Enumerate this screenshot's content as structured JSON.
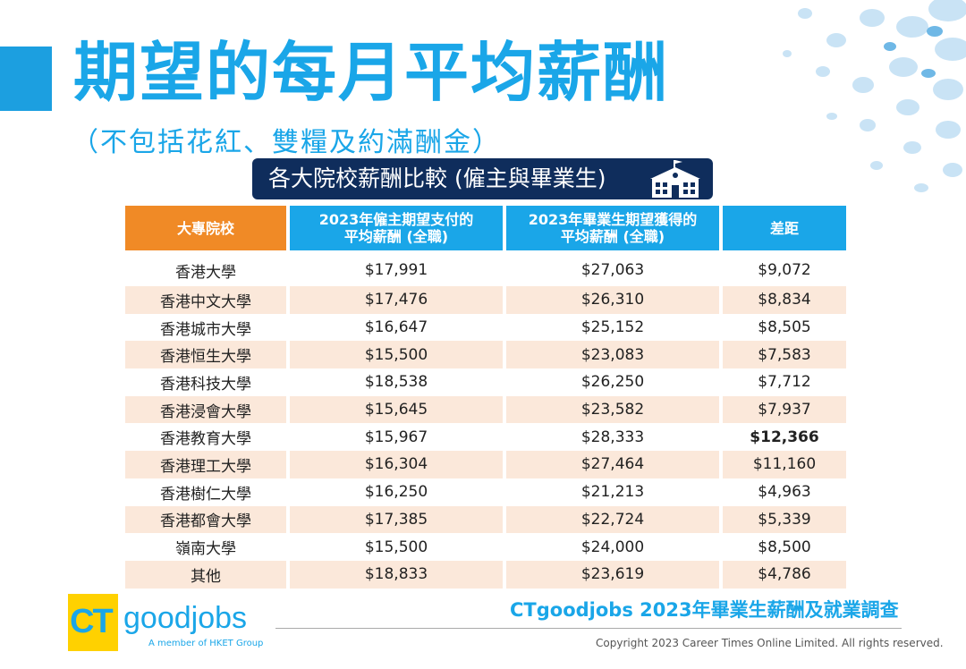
{
  "header": {
    "title": "期望的每月平均薪酬",
    "subtitle": "（不包括花紅、雙糧及約滿酬金）",
    "banner": "各大院校薪酬比較 (僱主與畢業生)"
  },
  "colors": {
    "accent_blue": "#1aa6e8",
    "accent_orange": "#f08a26",
    "banner_navy": "#0f2d5c",
    "row_alt": "#fbe8da",
    "highlight": "#e8601c"
  },
  "chart_data": {
    "type": "table",
    "title": "各大院校薪酬比較 (僱主與畢業生)",
    "columns": [
      "大專院校",
      "2023年僱主期望支付的平均薪酬 (全職)",
      "2023年畢業生期望獲得的平均薪酬 (全職)",
      "差距"
    ],
    "column_lines": [
      [
        "大專院校"
      ],
      [
        "2023年僱主期望支付的",
        "平均薪酬 (全職)"
      ],
      [
        "2023年畢業生期望獲得的",
        "平均薪酬 (全職)"
      ],
      [
        "差距"
      ]
    ],
    "rows": [
      [
        "香港大學",
        "$17,991",
        "$27,063",
        "$9,072"
      ],
      [
        "香港中文大學",
        "$17,476",
        "$26,310",
        "$8,834"
      ],
      [
        "香港城市大學",
        "$16,647",
        "$25,152",
        "$8,505"
      ],
      [
        "香港恒生大學",
        "$15,500",
        "$23,083",
        "$7,583"
      ],
      [
        "香港科技大學",
        "$18,538",
        "$26,250",
        "$7,712"
      ],
      [
        "香港浸會大學",
        "$15,645",
        "$23,582",
        "$7,937"
      ],
      [
        "香港教育大學",
        "$15,967",
        "$28,333",
        "$12,366"
      ],
      [
        "香港理工大學",
        "$16,304",
        "$27,464",
        "$11,160"
      ],
      [
        "香港樹仁大學",
        "$16,250",
        "$21,213",
        "$4,963"
      ],
      [
        "香港都會大學",
        "$17,385",
        "$22,724",
        "$5,339"
      ],
      [
        "嶺南大學",
        "$15,500",
        "$24,000",
        "$8,500"
      ],
      [
        "其他",
        "$18,833",
        "$23,619",
        "$4,786"
      ]
    ],
    "highlight_row": 6
  },
  "footer": {
    "logo_ct": "CT",
    "logo_goodjobs": "goodjobs",
    "logo_sub": "A member of HKET Group",
    "survey_title": "CTgoodjobs 2023年畢業生薪酬及就業調查",
    "copyright": "Copyright 2023 Career Times Online Limited. All rights reserved."
  }
}
